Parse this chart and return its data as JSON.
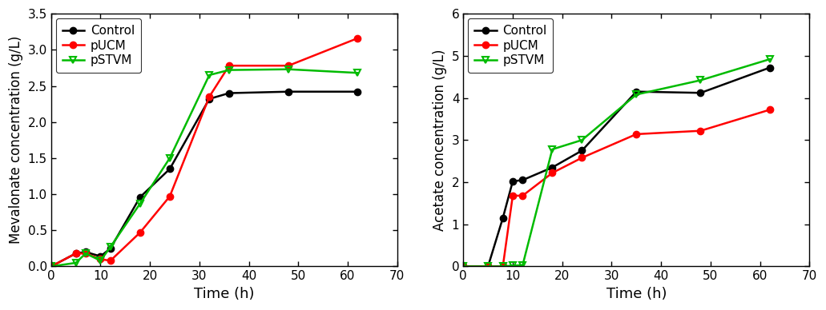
{
  "left": {
    "xlabel": "Time (h)",
    "ylabel": "Mevalonate concentration (g/L)",
    "ylim": [
      0,
      3.5
    ],
    "xlim": [
      0,
      70
    ],
    "yticks": [
      0.0,
      0.5,
      1.0,
      1.5,
      2.0,
      2.5,
      3.0,
      3.5
    ],
    "xticks": [
      0,
      10,
      20,
      30,
      40,
      50,
      60,
      70
    ],
    "series": {
      "Control": {
        "x": [
          0,
          5,
          7,
          10,
          12,
          18,
          24,
          32,
          36,
          48,
          62
        ],
        "y": [
          0.0,
          0.18,
          0.2,
          0.14,
          0.25,
          0.96,
          1.35,
          2.32,
          2.4,
          2.42,
          2.42
        ],
        "color": "#000000",
        "marker": "o",
        "marker_fill": "#000000"
      },
      "pUCM": {
        "x": [
          0,
          5,
          7,
          10,
          12,
          18,
          24,
          32,
          36,
          48,
          62
        ],
        "y": [
          0.0,
          0.18,
          0.18,
          0.1,
          0.08,
          0.47,
          0.97,
          2.35,
          2.78,
          2.78,
          3.16
        ],
        "color": "#ff0000",
        "marker": "o",
        "marker_fill": "#ff0000"
      },
      "pSTVM": {
        "x": [
          0,
          5,
          7,
          10,
          12,
          18,
          24,
          32,
          36,
          48,
          62
        ],
        "y": [
          0.0,
          0.05,
          0.18,
          0.08,
          0.27,
          0.87,
          1.5,
          2.65,
          2.72,
          2.73,
          2.68
        ],
        "color": "#00bb00",
        "marker": "v",
        "marker_fill": "none",
        "marker_edge": "#00bb00"
      }
    }
  },
  "right": {
    "xlabel": "Time (h)",
    "ylabel": "Acetate concentration (g/L)",
    "ylim": [
      0,
      6
    ],
    "xlim": [
      0,
      70
    ],
    "yticks": [
      0,
      1,
      2,
      3,
      4,
      5,
      6
    ],
    "xticks": [
      0,
      10,
      20,
      30,
      40,
      50,
      60,
      70
    ],
    "series": {
      "Control": {
        "x": [
          0,
          5,
          8,
          10,
          12,
          18,
          24,
          35,
          48,
          62
        ],
        "y": [
          0.0,
          0.0,
          1.15,
          2.02,
          2.05,
          2.35,
          2.75,
          4.15,
          4.12,
          4.72
        ],
        "color": "#000000",
        "marker": "o",
        "marker_fill": "#000000"
      },
      "pUCM": {
        "x": [
          0,
          5,
          8,
          10,
          12,
          18,
          24,
          35,
          48,
          62
        ],
        "y": [
          0.0,
          0.0,
          0.0,
          1.68,
          1.68,
          2.22,
          2.58,
          3.14,
          3.22,
          3.72
        ],
        "color": "#ff0000",
        "marker": "o",
        "marker_fill": "#ff0000"
      },
      "pSTVM": {
        "x": [
          0,
          5,
          8,
          10,
          12,
          18,
          24,
          35,
          48,
          62
        ],
        "y": [
          0.0,
          0.0,
          0.0,
          0.02,
          0.03,
          2.78,
          3.0,
          4.08,
          4.42,
          4.92
        ],
        "color": "#00bb00",
        "marker": "v",
        "marker_fill": "none",
        "marker_edge": "#00bb00"
      }
    }
  },
  "legend_order": [
    "Control",
    "pUCM",
    "pSTVM"
  ],
  "line_width": 1.8,
  "marker_size": 6,
  "axis_label_fontsize": 13,
  "tick_fontsize": 11,
  "legend_fontsize": 11
}
